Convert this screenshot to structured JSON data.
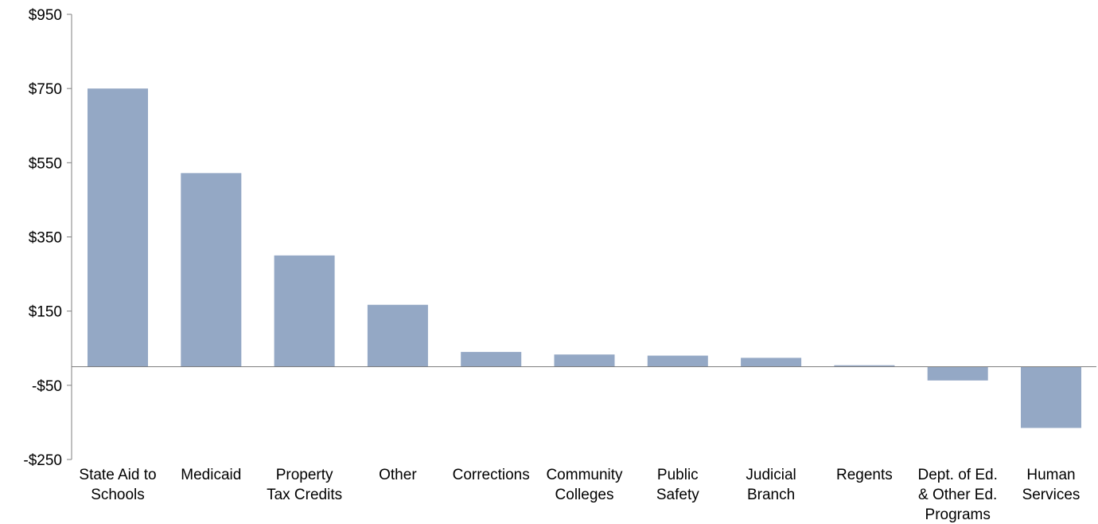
{
  "chart_data": {
    "type": "bar",
    "title": "",
    "xlabel": "",
    "ylabel": "",
    "ylim": [
      -250,
      950
    ],
    "yticks": [
      950,
      750,
      550,
      350,
      150,
      -50,
      -250
    ],
    "ytick_labels": [
      "$950",
      "$750",
      "$550",
      "$350",
      "$150",
      "-$50",
      "-$250"
    ],
    "categories": [
      [
        "State Aid to",
        "Schools"
      ],
      [
        "Medicaid"
      ],
      [
        "Property",
        "Tax Credits"
      ],
      [
        "Other"
      ],
      [
        "Corrections"
      ],
      [
        "Community",
        "Colleges"
      ],
      [
        "Public",
        "Safety"
      ],
      [
        "Judicial",
        "Branch"
      ],
      [
        "Regents"
      ],
      [
        "Dept. of Ed.",
        "& Other Ed.",
        "Programs"
      ],
      [
        "Human",
        "Services"
      ]
    ],
    "values": [
      750,
      522,
      300,
      167,
      40,
      33,
      30,
      24,
      4,
      -37,
      -165
    ],
    "bar_color": "#94A8C5",
    "grid": false,
    "legend": "none"
  }
}
